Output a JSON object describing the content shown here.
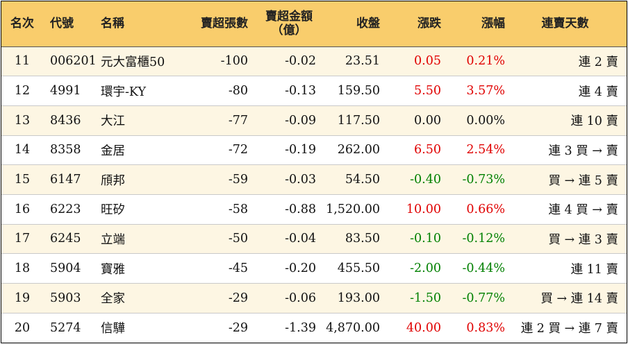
{
  "header": {
    "rank": "名次",
    "code": "代號",
    "name": "名稱",
    "sell_lots": "賣超張數",
    "sell_amount_line1": "賣超金額",
    "sell_amount_line2": "（億）",
    "close": "收盤",
    "change": "漲跌",
    "change_pct": "漲幅",
    "streak": "連賣天數"
  },
  "rows": [
    {
      "rank": "11",
      "code": "006201",
      "name": "元大富櫃50",
      "sell_lots": "-100",
      "sell_amount": "-0.02",
      "close": "23.51",
      "change": "0.05",
      "change_pct": "0.21%",
      "trend": "up",
      "streak": "連 2 賣"
    },
    {
      "rank": "12",
      "code": "4991",
      "name": "環宇-KY",
      "sell_lots": "-80",
      "sell_amount": "-0.13",
      "close": "159.50",
      "change": "5.50",
      "change_pct": "3.57%",
      "trend": "up",
      "streak": "連 4 賣"
    },
    {
      "rank": "13",
      "code": "8436",
      "name": "大江",
      "sell_lots": "-77",
      "sell_amount": "-0.09",
      "close": "117.50",
      "change": "0.00",
      "change_pct": "0.00%",
      "trend": "flat",
      "streak": "連 10 賣"
    },
    {
      "rank": "14",
      "code": "8358",
      "name": "金居",
      "sell_lots": "-72",
      "sell_amount": "-0.19",
      "close": "262.00",
      "change": "6.50",
      "change_pct": "2.54%",
      "trend": "up",
      "streak": "連 3 買 → 賣"
    },
    {
      "rank": "15",
      "code": "6147",
      "name": "頎邦",
      "sell_lots": "-59",
      "sell_amount": "-0.03",
      "close": "54.50",
      "change": "-0.40",
      "change_pct": "-0.73%",
      "trend": "down",
      "streak": "買 → 連 5 賣"
    },
    {
      "rank": "16",
      "code": "6223",
      "name": "旺矽",
      "sell_lots": "-58",
      "sell_amount": "-0.88",
      "close": "1,520.00",
      "change": "10.00",
      "change_pct": "0.66%",
      "trend": "up",
      "streak": "連 4 買 → 賣"
    },
    {
      "rank": "17",
      "code": "6245",
      "name": "立端",
      "sell_lots": "-50",
      "sell_amount": "-0.04",
      "close": "83.50",
      "change": "-0.10",
      "change_pct": "-0.12%",
      "trend": "down",
      "streak": "買 → 連 3 賣"
    },
    {
      "rank": "18",
      "code": "5904",
      "name": "寶雅",
      "sell_lots": "-45",
      "sell_amount": "-0.20",
      "close": "455.50",
      "change": "-2.00",
      "change_pct": "-0.44%",
      "trend": "down",
      "streak": "連 11 賣"
    },
    {
      "rank": "19",
      "code": "5903",
      "name": "全家",
      "sell_lots": "-29",
      "sell_amount": "-0.06",
      "close": "193.00",
      "change": "-1.50",
      "change_pct": "-0.77%",
      "trend": "down",
      "streak": "買 → 連 14 賣"
    },
    {
      "rank": "20",
      "code": "5274",
      "name": "信驊",
      "sell_lots": "-29",
      "sell_amount": "-1.39",
      "close": "4,870.00",
      "change": "40.00",
      "change_pct": "0.83%",
      "trend": "up",
      "streak": "連 2 買 → 連 7 賣"
    }
  ],
  "colors": {
    "header_bg": "#f9cd6c",
    "alt_row_bg": "#fdf6e3",
    "up": "#e00000",
    "down": "#008000"
  }
}
